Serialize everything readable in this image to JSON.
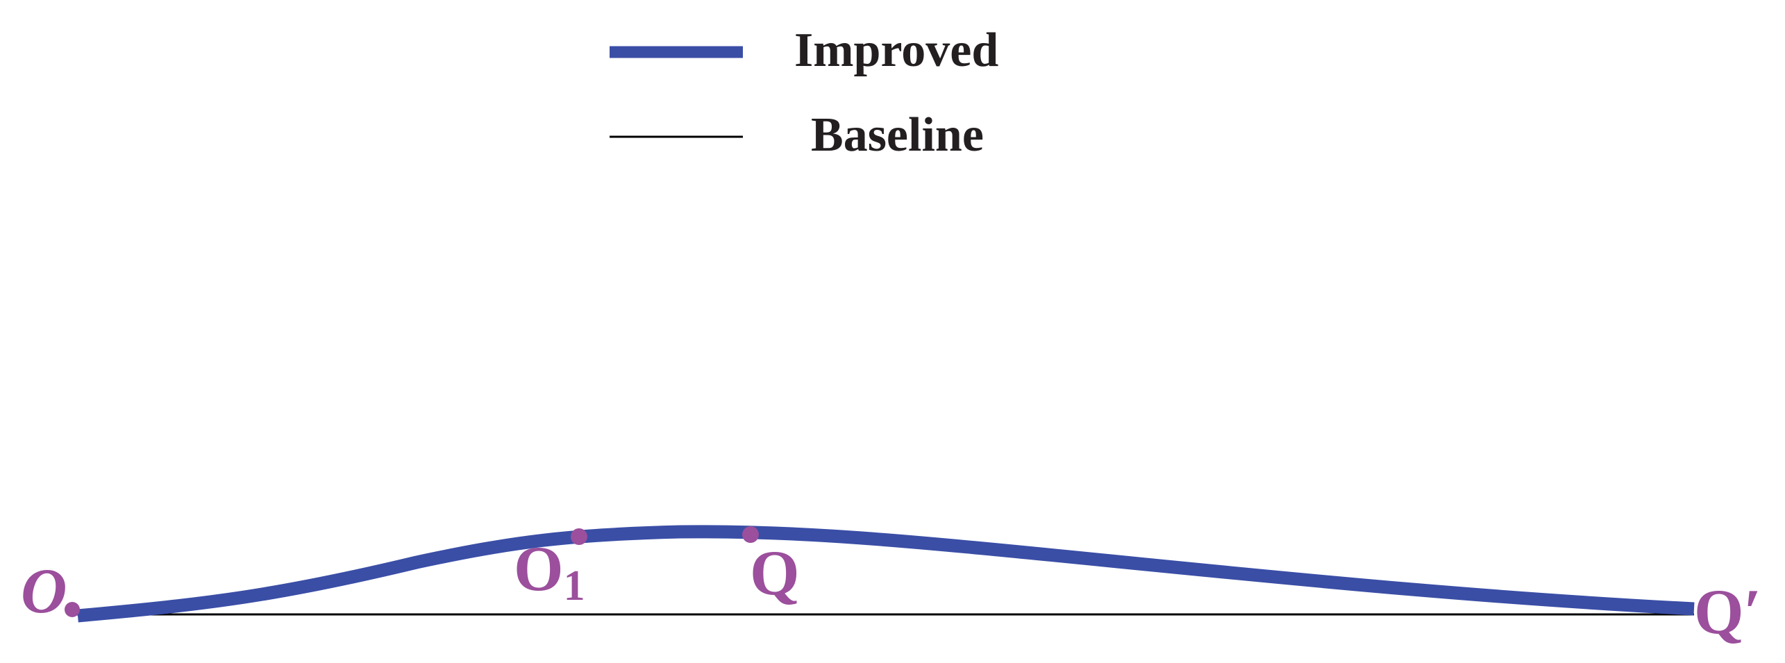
{
  "legend": {
    "items": [
      {
        "label": "Improved",
        "color": "#3a4ea6",
        "style": "thick"
      },
      {
        "label": "Baseline",
        "color": "#000000",
        "style": "thin"
      }
    ]
  },
  "points": {
    "o": {
      "label": "O",
      "color": "#9b4f9c"
    },
    "o1": {
      "label": "O",
      "subscript": "1",
      "color": "#9b4f9c"
    },
    "q": {
      "label": "Q",
      "color": "#9b4f9c"
    },
    "q_prime": {
      "label": "Q′",
      "color": "#9b4f9c"
    }
  },
  "colors": {
    "improved": "#3a4ea6",
    "baseline": "#000000",
    "points": "#9b4f9c",
    "text": "#231f20"
  }
}
